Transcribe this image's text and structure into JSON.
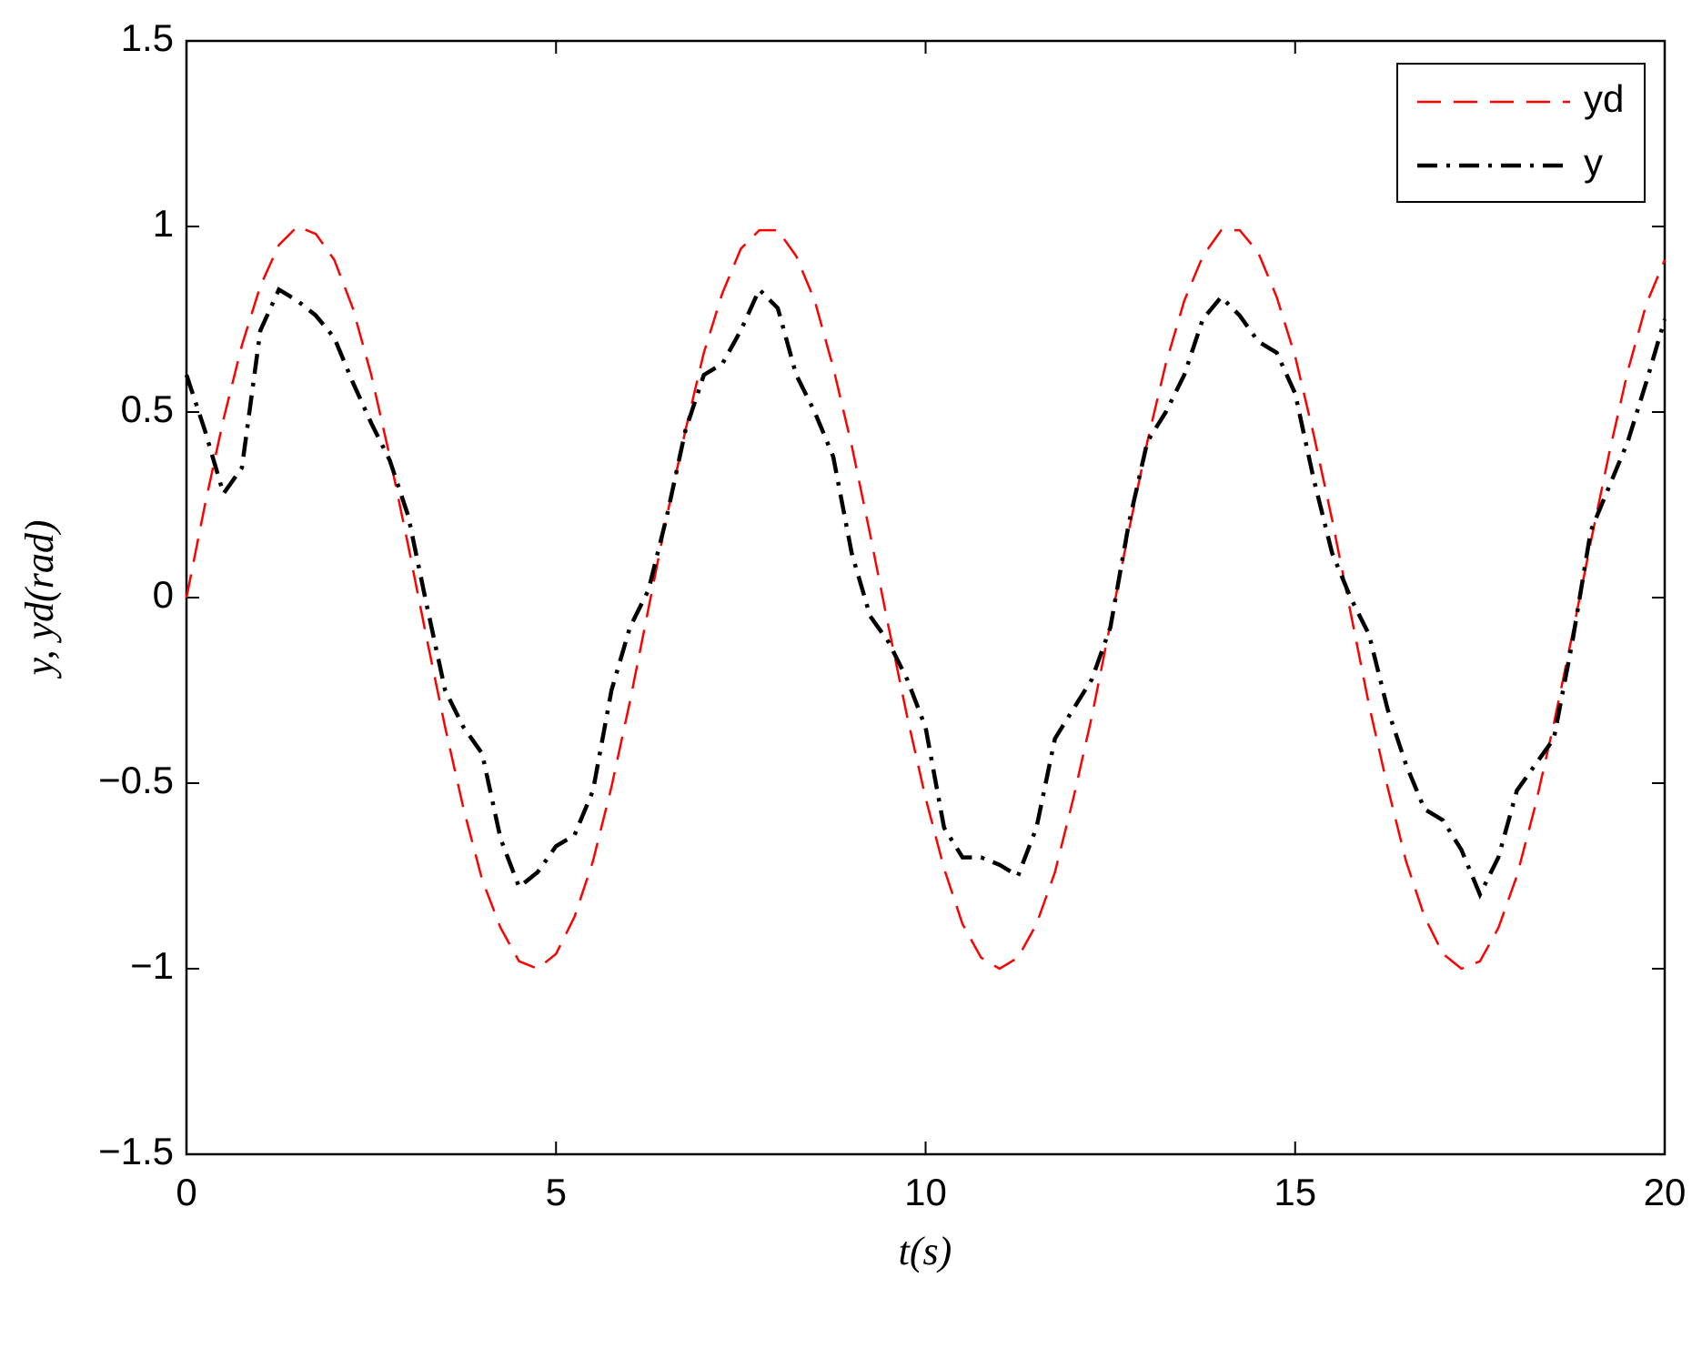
{
  "chart_data": {
    "type": "line",
    "xlabel": "t(s)",
    "ylabel": "y, yd(rad)",
    "x": [
      0,
      0.25,
      0.5,
      0.75,
      1,
      1.25,
      1.5,
      1.75,
      2,
      2.25,
      2.5,
      2.75,
      3,
      3.25,
      3.5,
      3.75,
      4,
      4.25,
      4.5,
      4.75,
      5,
      5.25,
      5.5,
      5.75,
      6,
      6.25,
      6.5,
      6.75,
      7,
      7.25,
      7.5,
      7.75,
      8,
      8.25,
      8.5,
      8.75,
      9,
      9.25,
      9.5,
      9.75,
      10,
      10.25,
      10.5,
      10.75,
      11,
      11.25,
      11.5,
      11.75,
      12,
      12.25,
      12.5,
      12.75,
      13,
      13.25,
      13.5,
      13.75,
      14,
      14.25,
      14.5,
      14.75,
      15,
      15.25,
      15.5,
      15.75,
      16,
      16.25,
      16.5,
      16.75,
      17,
      17.25,
      17.5,
      17.75,
      18,
      18.25,
      18.5,
      18.75,
      19,
      19.25,
      19.5,
      19.75,
      20
    ],
    "series": [
      {
        "name": "yd",
        "color": "#ff0000",
        "dash": "dashed",
        "values": [
          0,
          0.25,
          0.48,
          0.68,
          0.84,
          0.95,
          1.0,
          0.98,
          0.91,
          0.78,
          0.6,
          0.38,
          0.14,
          -0.11,
          -0.35,
          -0.57,
          -0.76,
          -0.89,
          -0.98,
          -1.0,
          -0.96,
          -0.86,
          -0.71,
          -0.51,
          -0.28,
          -0.03,
          0.22,
          0.45,
          0.66,
          0.82,
          0.94,
          0.99,
          0.99,
          0.92,
          0.8,
          0.62,
          0.41,
          0.17,
          -0.08,
          -0.32,
          -0.54,
          -0.73,
          -0.88,
          -0.97,
          -1.0,
          -0.97,
          -0.88,
          -0.74,
          -0.54,
          -0.32,
          -0.07,
          0.18,
          0.42,
          0.63,
          0.8,
          0.92,
          0.99,
          0.99,
          0.93,
          0.81,
          0.65,
          0.44,
          0.21,
          -0.04,
          -0.29,
          -0.51,
          -0.71,
          -0.86,
          -0.96,
          -1.0,
          -0.98,
          -0.89,
          -0.75,
          -0.56,
          -0.34,
          -0.1,
          0.15,
          0.39,
          0.61,
          0.79,
          0.91
        ]
      },
      {
        "name": "y",
        "color": "#000000",
        "dash": "dashdot",
        "values": [
          0.6,
          0.45,
          0.28,
          0.35,
          0.72,
          0.83,
          0.8,
          0.76,
          0.7,
          0.58,
          0.47,
          0.37,
          0.22,
          -0.02,
          -0.25,
          -0.35,
          -0.42,
          -0.65,
          -0.78,
          -0.74,
          -0.67,
          -0.64,
          -0.52,
          -0.25,
          -0.08,
          0.02,
          0.22,
          0.45,
          0.6,
          0.63,
          0.72,
          0.83,
          0.78,
          0.6,
          0.5,
          0.38,
          0.12,
          -0.05,
          -0.12,
          -0.22,
          -0.35,
          -0.62,
          -0.7,
          -0.7,
          -0.72,
          -0.75,
          -0.62,
          -0.38,
          -0.3,
          -0.22,
          -0.08,
          0.2,
          0.42,
          0.5,
          0.6,
          0.75,
          0.81,
          0.76,
          0.69,
          0.66,
          0.55,
          0.32,
          0.12,
          0.0,
          -0.1,
          -0.3,
          -0.45,
          -0.57,
          -0.6,
          -0.68,
          -0.8,
          -0.7,
          -0.52,
          -0.45,
          -0.38,
          -0.12,
          0.18,
          0.3,
          0.42,
          0.58,
          0.75
        ]
      }
    ],
    "xlim": [
      0,
      20
    ],
    "xticks": [
      0,
      5,
      10,
      15,
      20
    ],
    "ylim": [
      -1.5,
      1.5
    ],
    "yticks": [
      {
        "value": -1.5,
        "label": "−1.5"
      },
      {
        "value": -1,
        "label": "−1"
      },
      {
        "value": -0.5,
        "label": "−0.5"
      },
      0,
      0.5,
      1,
      1.5
    ],
    "grid": false,
    "legend": "upper right"
  }
}
